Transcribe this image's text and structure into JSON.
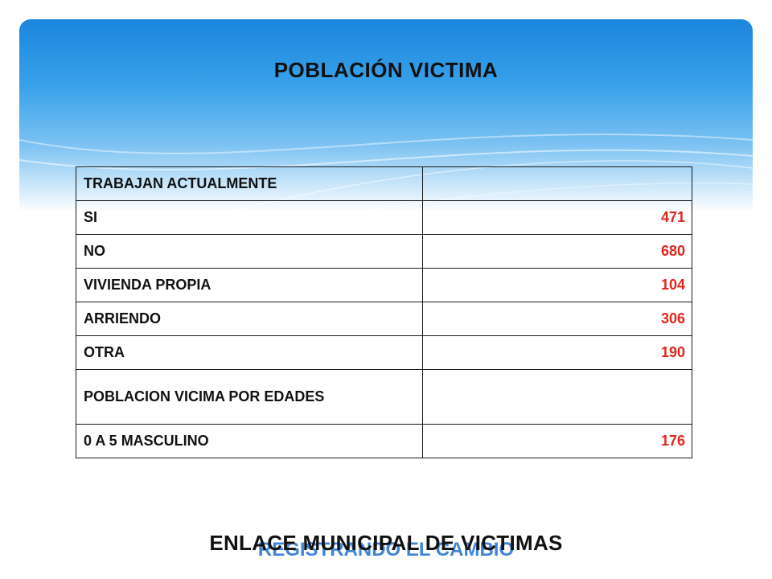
{
  "slide": {
    "title": "POBLACIÓN  VICTIMA",
    "footer_main": "ENLACE MUNICIPAL DE VICTIMAS",
    "footer_sub": "REGISTRANDO EL CAMBIO"
  },
  "table": {
    "rows": [
      {
        "label": "TRABAJAN ACTUALMENTE",
        "value": ""
      },
      {
        "label": "SI",
        "value": "471"
      },
      {
        "label": "NO",
        "value": "680"
      },
      {
        "label": "VIVIENDA PROPIA",
        "value": "104"
      },
      {
        "label": "ARRIENDO",
        "value": "306"
      },
      {
        "label": "OTRA",
        "value": "190"
      },
      {
        "label": "POBLACION VICIMA POR EDADES",
        "value": ""
      },
      {
        "label": "0 A 5 MASCULINO",
        "value": "176"
      }
    ]
  },
  "colors": {
    "header_blue": "#1a86dd",
    "value_red": "#e0251b",
    "footer_sub_blue": "#1f6fd1"
  }
}
